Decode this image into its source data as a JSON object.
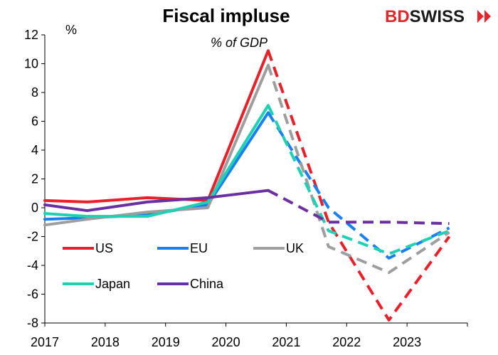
{
  "brand": {
    "prefix": "BD",
    "suffix": "SWISS",
    "prefix_color": "#e3262d",
    "suffix_color": "#1a1a1a"
  },
  "chart_data": {
    "type": "line",
    "title": "Fiscal impluse",
    "subtitle": "% of GDP",
    "ylabel": "%",
    "ylim": [
      -8,
      12
    ],
    "yticks": [
      -8,
      -6,
      -4,
      -2,
      0,
      2,
      4,
      6,
      8,
      10,
      12
    ],
    "xticks": [
      "2017",
      "2018",
      "2019",
      "2020",
      "2021",
      "2022",
      "2023"
    ],
    "x": [
      2017,
      2017.7,
      2018.7,
      2019.7,
      2020.7,
      2021.7,
      2022.7,
      2023.7
    ],
    "projection_from": 2020.7,
    "series": [
      {
        "name": "US",
        "color": "#e8202a",
        "values": [
          0.5,
          0.4,
          0.7,
          0.5,
          10.9,
          -1.0,
          -7.8,
          -2.0
        ]
      },
      {
        "name": "EU",
        "color": "#1a7ff0",
        "values": [
          -0.8,
          -0.7,
          -0.5,
          0.2,
          6.6,
          0.0,
          -3.5,
          -1.4
        ]
      },
      {
        "name": "UK",
        "color": "#9e9e9e",
        "values": [
          -1.2,
          -0.8,
          -0.3,
          0.0,
          9.9,
          -2.7,
          -4.5,
          -1.7
        ]
      },
      {
        "name": "Japan",
        "color": "#1fd1b3",
        "values": [
          -0.4,
          -0.6,
          -0.6,
          0.4,
          7.1,
          -1.6,
          -3.2,
          -1.6
        ]
      },
      {
        "name": "China",
        "color": "#6a2fa0",
        "values": [
          0.2,
          -0.2,
          0.4,
          0.7,
          1.2,
          -1.0,
          -1.0,
          -1.1
        ]
      }
    ]
  }
}
